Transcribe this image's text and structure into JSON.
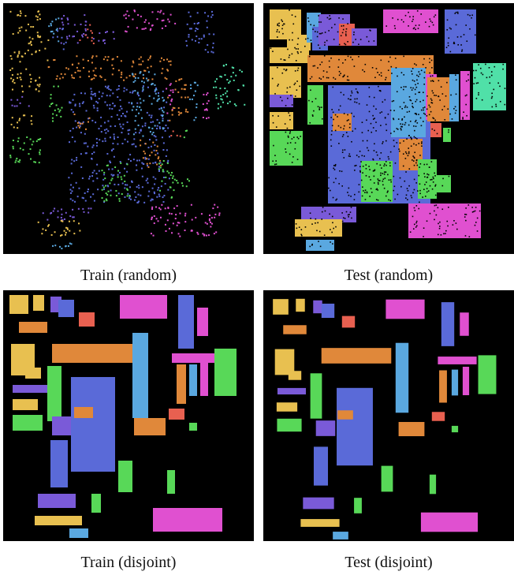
{
  "figure": {
    "panels": [
      {
        "caption": "Train (random)",
        "split": "train",
        "sampling": "random"
      },
      {
        "caption": "Test (random)",
        "split": "test",
        "sampling": "random"
      },
      {
        "caption": "Train (disjoint)",
        "split": "train",
        "sampling": "disjoint"
      },
      {
        "caption": "Test (disjoint)",
        "split": "test",
        "sampling": "disjoint"
      }
    ],
    "background_color": "#000000",
    "class_colors": [
      "#e8c050",
      "#e0883a",
      "#7a5ad8",
      "#5a6ad8",
      "#e050d0",
      "#d8a8e0",
      "#5aa8e0",
      "#50e0a8",
      "#58d858",
      "#e86050",
      "#c8c030",
      "#b8e060"
    ]
  }
}
